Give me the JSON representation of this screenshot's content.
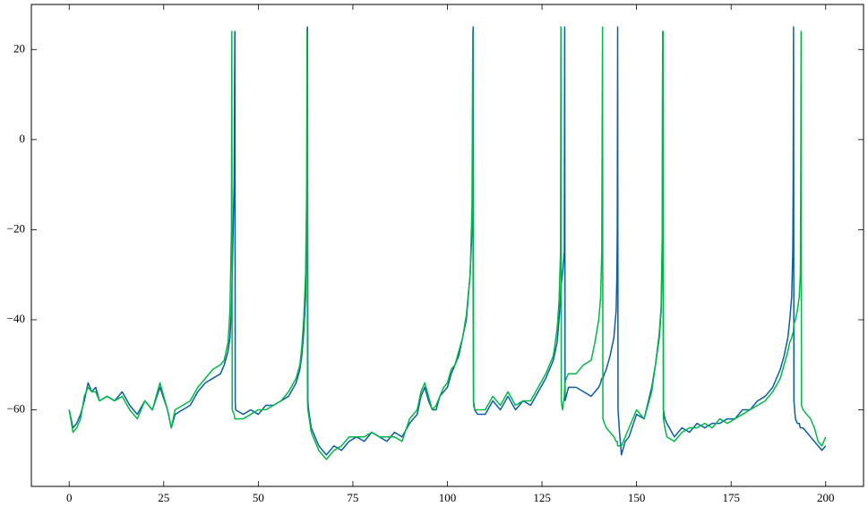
{
  "chart_data": {
    "type": "line",
    "x": [
      0,
      1,
      2,
      3,
      4,
      5,
      6,
      7,
      8,
      10,
      12,
      14,
      16,
      18,
      20,
      22,
      24,
      26,
      27,
      28,
      30,
      32,
      34,
      36,
      38,
      40,
      41,
      42,
      42.5,
      42.9,
      43.0,
      43.1,
      43.6,
      43.8,
      43.9,
      44,
      46,
      48,
      50,
      52,
      54,
      56,
      58,
      60,
      61,
      61.5,
      62,
      62.5,
      62.8,
      62.9,
      63.0,
      63.1,
      63.3,
      64,
      65,
      66,
      68,
      70,
      72,
      74,
      76,
      78,
      80,
      82,
      84,
      86,
      88,
      90,
      92,
      93,
      94,
      95,
      96,
      97,
      98,
      99,
      100,
      101,
      102,
      103,
      104,
      105,
      106,
      106.5,
      106.7,
      106.8,
      106.9,
      107.2,
      108,
      110,
      112,
      114,
      116,
      118,
      120,
      122,
      124,
      126,
      127,
      128,
      128.5,
      129,
      129.5,
      129.9,
      130.0,
      130.1,
      130.4,
      130.9,
      131.0,
      131.1,
      131.4,
      132,
      134,
      136,
      138,
      139,
      140,
      140.5,
      140.8,
      140.9,
      141.0,
      141.1,
      141.5,
      142,
      143,
      144,
      144.6,
      144.8,
      144.9,
      145.0,
      145.1,
      145.5,
      146,
      147,
      148,
      150,
      152,
      154,
      155,
      156,
      156.5,
      156.8,
      156.9,
      157.0,
      157.1,
      157.5,
      158,
      160,
      162,
      164,
      166,
      168,
      170,
      172,
      174,
      176,
      178,
      180,
      182,
      184,
      186,
      188,
      189,
      190,
      190.5,
      191,
      191.3,
      191.4,
      191.5,
      191.6,
      192,
      192.5,
      193,
      193.3,
      193.4,
      193.5,
      193.6,
      194,
      195,
      196,
      197,
      198,
      199,
      200
    ],
    "series": [
      {
        "color": "#0C5DA5",
        "values": [
          -60,
          -64,
          -63,
          -61,
          -58,
          -54,
          -56,
          -55,
          -58,
          -57,
          -58,
          -56,
          -59,
          -61,
          -58,
          -60,
          -55,
          -60,
          -64,
          -61,
          -60,
          -59,
          -56,
          -54,
          -53,
          -52,
          -50,
          -47,
          -44,
          -38,
          -34,
          -30,
          -10,
          24,
          -58,
          -60,
          -61,
          -60,
          -61,
          -59,
          -59,
          -58,
          -57,
          -54,
          -51,
          -48,
          -43,
          -35,
          -20,
          24,
          25,
          -58,
          -60,
          -64,
          -66,
          -68,
          -70,
          -68,
          -69,
          -67,
          -66,
          -67,
          -65,
          -66,
          -67,
          -65,
          -66,
          -63,
          -61,
          -57,
          -55,
          -58,
          -60,
          -60,
          -57,
          -56,
          -55,
          -52,
          -50,
          -48,
          -44,
          -40,
          -30,
          -20,
          0,
          25,
          -58,
          -60,
          -61,
          -61,
          -58,
          -60,
          -57,
          -60,
          -58,
          -59,
          -56,
          -53,
          -51,
          -49,
          -47,
          -45,
          -40,
          -35,
          -33,
          -32,
          -30,
          -25,
          25,
          -58,
          -57,
          -55,
          -55,
          -56,
          -57,
          -56,
          -55,
          -54,
          -53,
          -53,
          -53,
          -53,
          -52,
          -51,
          -48,
          -44,
          -38,
          -30,
          -20,
          25,
          -60,
          -65,
          -70,
          -67,
          -66,
          -61,
          -62,
          -55,
          -50,
          -44,
          -38,
          -25,
          24,
          24,
          -60,
          -62,
          -63,
          -66,
          -64,
          -65,
          -63,
          -64,
          -63,
          -63,
          -62,
          -62,
          -60,
          -60,
          -58,
          -57,
          -55,
          -51,
          -48,
          -44,
          -40,
          -35,
          -25,
          -10,
          25,
          -58,
          -62,
          -63,
          -63,
          -64,
          -64,
          -64,
          -64,
          -64,
          -65,
          -66,
          -67,
          -68,
          -69,
          -68
        ]
      },
      {
        "color": "#00B945",
        "values": [
          -60,
          -65,
          -64,
          -62,
          -57,
          -55,
          -56,
          -56,
          -58,
          -57,
          -58,
          -57,
          -60,
          -62,
          -58,
          -60,
          -54,
          -60,
          -64,
          -60,
          -59,
          -58,
          -55,
          -53,
          -51,
          -50,
          -49,
          -45,
          -38,
          -20,
          24,
          -60,
          -61,
          -62,
          -62,
          -62,
          -62,
          -61,
          -60,
          -60,
          -59,
          -58,
          -56,
          -53,
          -50,
          -46,
          -40,
          -30,
          -10,
          24,
          -58,
          -60,
          -61,
          -65,
          -67,
          -69,
          -71,
          -69,
          -68,
          -66,
          -66,
          -66,
          -65,
          -66,
          -66,
          -66,
          -67,
          -62,
          -60,
          -56,
          -54,
          -57,
          -60,
          -59,
          -57,
          -55,
          -54,
          -51,
          -50,
          -47,
          -44,
          -39,
          -30,
          -15,
          24,
          -40,
          -59,
          -60,
          -60,
          -60,
          -57,
          -59,
          -56,
          -59,
          -58,
          -58,
          -55,
          -52,
          -50,
          -48,
          -45,
          -42,
          -36,
          -25,
          25,
          -58,
          -60,
          -57,
          -55,
          -54,
          -53,
          -52,
          -52,
          -50,
          -49,
          -45,
          -40,
          -35,
          -25,
          0,
          25,
          -62,
          -63,
          -64,
          -65,
          -66,
          -67,
          -67,
          -67,
          -68,
          -68,
          -68,
          -68,
          -66,
          -64,
          -60,
          -62,
          -56,
          -50,
          -43,
          -37,
          -20,
          24,
          24,
          -62,
          -64,
          -66,
          -67,
          -65,
          -64,
          -64,
          -63,
          -64,
          -62,
          -63,
          -62,
          -61,
          -60,
          -59,
          -58,
          -56,
          -53,
          -50,
          -47,
          -45,
          -44,
          -43,
          -43,
          -42,
          -41,
          -40,
          -38,
          -35,
          -30,
          -10,
          24,
          -59,
          -60,
          -61,
          -62,
          -64,
          -67,
          -68,
          -66
        ]
      }
    ],
    "xlim": [
      -10,
      210
    ],
    "ylim": [
      -77,
      30
    ],
    "xticks": [
      0,
      25,
      50,
      75,
      100,
      125,
      150,
      175,
      200
    ],
    "yticks": [
      {
        "value": -60,
        "label": "−60"
      },
      {
        "value": -40,
        "label": "−40"
      },
      {
        "value": -20,
        "label": "−20"
      },
      0,
      20
    ]
  }
}
